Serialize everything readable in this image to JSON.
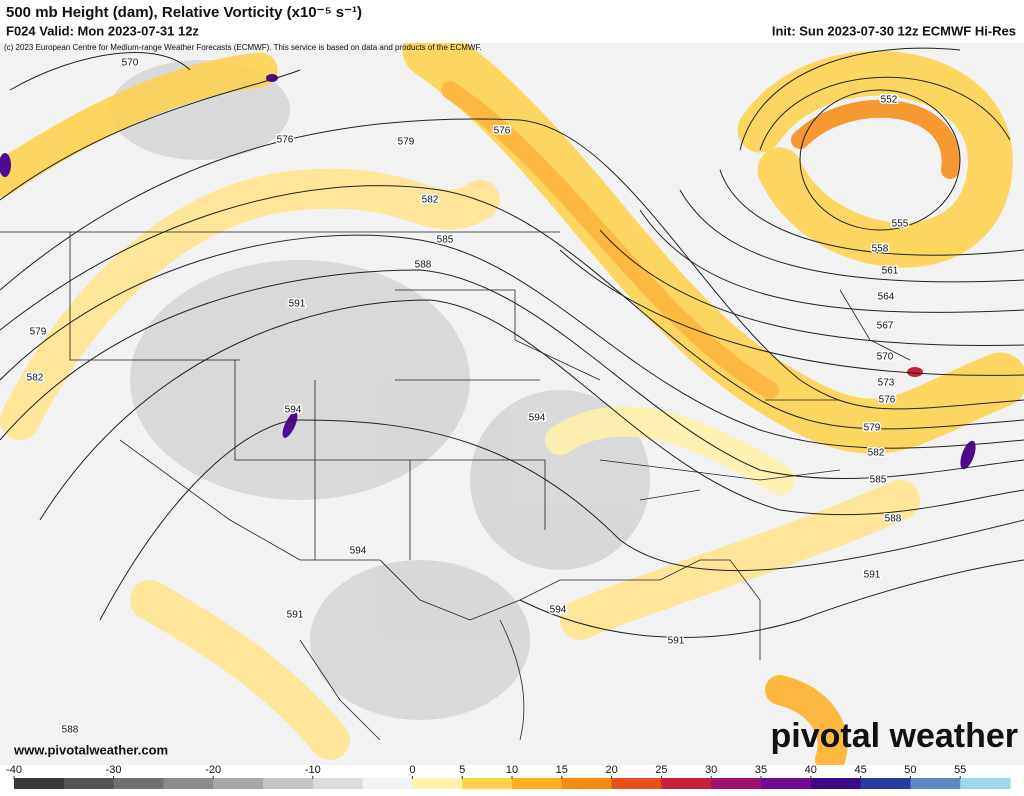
{
  "header": {
    "title": "500 mb Height (dam), Relative Vorticity (x10⁻⁵ s⁻¹)",
    "valid": "F024 Valid: Mon 2023-07-31 12z",
    "init": "Init: Sun 2023-07-30 12z ECMWF Hi-Res",
    "copyright": "(c) 2023 European Centre for Medium-range Weather Forecasts (ECMWF). This service is based on data and products of the ECMWF."
  },
  "map": {
    "contour_labels": [
      "570",
      "576",
      "579",
      "576",
      "582",
      "585",
      "588",
      "591",
      "579",
      "582",
      "594",
      "594",
      "594",
      "591",
      "594",
      "591",
      "552",
      "555",
      "558",
      "561",
      "564",
      "567",
      "570",
      "573",
      "576",
      "579",
      "582",
      "585",
      "588",
      "591",
      "588"
    ]
  },
  "footer": {
    "website": "www.pivotalweather.com",
    "logo": "pivotal weather"
  },
  "colorbar": {
    "lim": [
      -40,
      60
    ],
    "ticks": [
      -40,
      -30,
      -20,
      -10,
      0,
      5,
      10,
      15,
      20,
      25,
      30,
      35,
      40,
      45,
      50,
      55
    ],
    "colors": [
      "#3a3a3a",
      "#555555",
      "#707070",
      "#8c8c8c",
      "#a8a8a8",
      "#c4c4c4",
      "#dddddd",
      "#f4f4f4",
      "#fff2a8",
      "#ffd24a",
      "#ffb020",
      "#f88a10",
      "#e8501a",
      "#c8203a",
      "#a01070",
      "#700a90",
      "#3c0a8a",
      "#2a3aa0",
      "#5a8ac0",
      "#9ed6e6"
    ]
  }
}
